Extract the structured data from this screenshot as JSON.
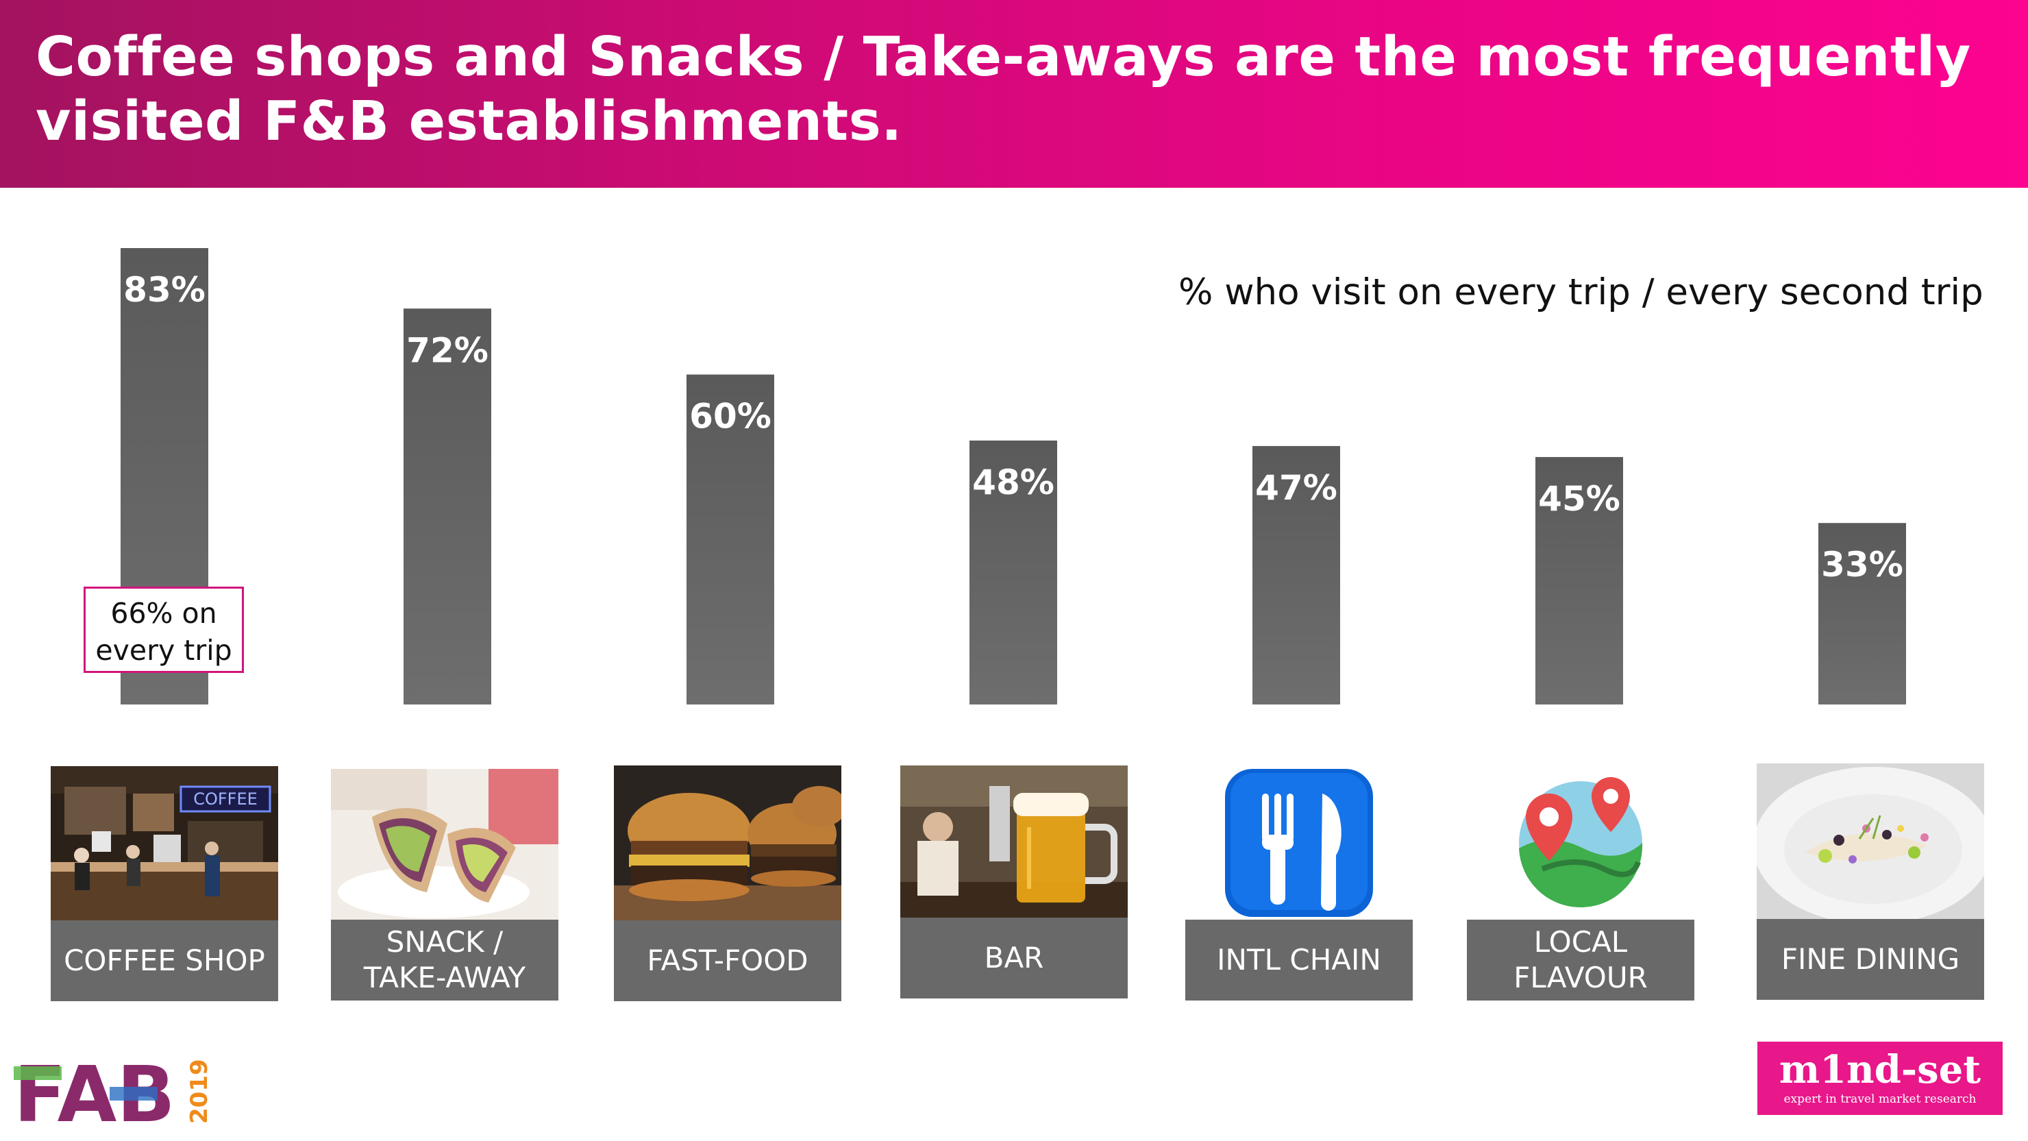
{
  "header": {
    "title_line1": "Coffee shops and Snacks / Take-aways are the most frequently",
    "title_line2": "visited F&B establishments."
  },
  "subtitle": "% who visit on every trip / every second trip",
  "callout": {
    "line1": "66% on",
    "line2": "every trip"
  },
  "colors": {
    "accent": "#e8178a",
    "bar": "#5e5e5e",
    "label_bg": "#696969"
  },
  "chart_data": {
    "type": "bar",
    "categories": [
      "COFFEE SHOP",
      "SNACK / TAKE-AWAY",
      "FAST-FOOD",
      "BAR",
      "INTL CHAIN",
      "LOCAL FLAVOUR",
      "FINE DINING"
    ],
    "values": [
      83,
      72,
      60,
      48,
      47,
      45,
      33
    ],
    "value_labels": [
      "83%",
      "72%",
      "60%",
      "48%",
      "47%",
      "45%",
      "33%"
    ],
    "unit": "%",
    "ylim": [
      0,
      83
    ],
    "grid": false
  },
  "cards": [
    {
      "label": "COFFEE SHOP",
      "icon": "coffee-shop-photo"
    },
    {
      "label": "SNACK /\nTAKE-AWAY",
      "icon": "wrap-photo"
    },
    {
      "label": "FAST-FOOD",
      "icon": "burger-photo"
    },
    {
      "label": "BAR",
      "icon": "beer-photo"
    },
    {
      "label": "INTL CHAIN",
      "icon": "fork-knife-icon"
    },
    {
      "label": "LOCAL\nFLAVOUR",
      "icon": "map-pin-icon"
    },
    {
      "label": "FINE DINING",
      "icon": "plated-dish-photo"
    }
  ],
  "photo_text": {
    "coffee_sign": "COFFEE"
  },
  "logos": {
    "fab_text": "FAB",
    "fab_year": "2019",
    "mindset_name": "m1nd-set",
    "mindset_tag": "expert in travel market research"
  }
}
